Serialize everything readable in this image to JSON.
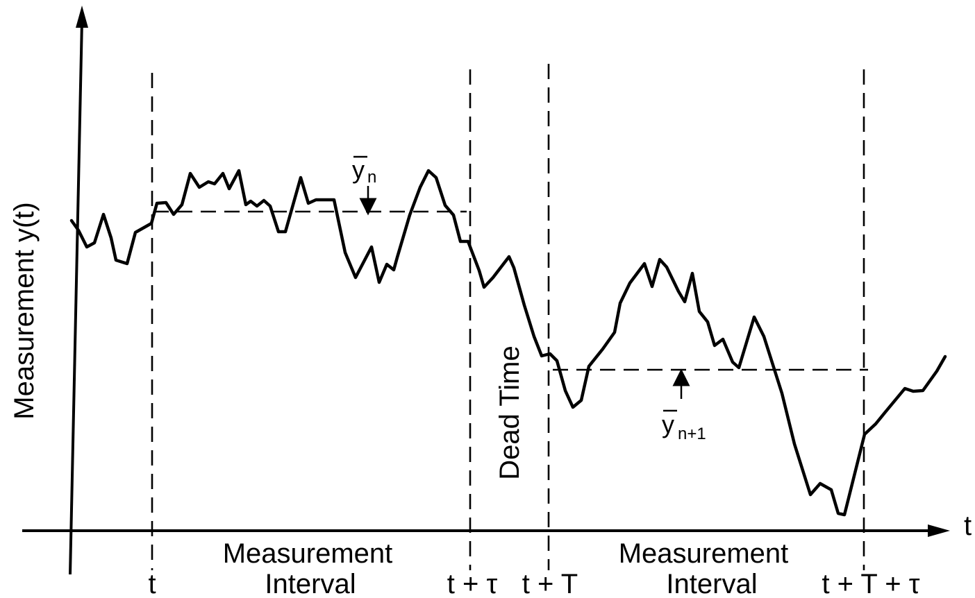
{
  "axes": {
    "y_label": "Measurement y(t)",
    "x_label": "t"
  },
  "ticks": {
    "t0": "t",
    "t_tau": "t + τ",
    "t_T": "t + T",
    "t_T_tau": "t + T + τ"
  },
  "regions": {
    "interval1_line1": "Measurement",
    "interval1_line2": "Interval",
    "interval2_line1": "Measurement",
    "interval2_line2": "Interval",
    "dead_time": "Dead Time"
  },
  "averages": {
    "y_n_base": "y",
    "y_n_sub": "n",
    "y_n1_base": "y",
    "y_n1_sub": "n+1"
  },
  "colors": {
    "ink": "#000000",
    "background": "#ffffff"
  }
}
